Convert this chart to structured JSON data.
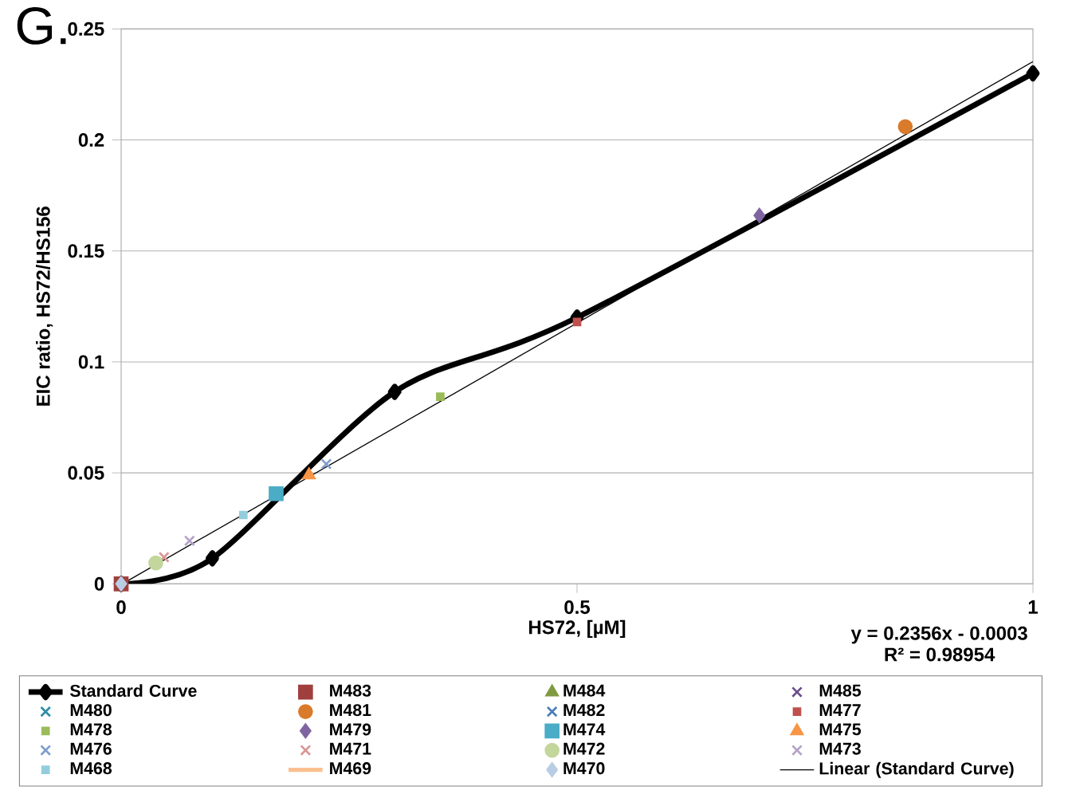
{
  "chart_data": {
    "type": "scatter",
    "title": "G.",
    "xlabel": "HS72, [µM]",
    "ylabel": "EIC ratio, HS72/HS156",
    "xlim": [
      0,
      1
    ],
    "xticks": [
      0,
      0.5,
      1
    ],
    "ylim": [
      0,
      0.25
    ],
    "yticks": [
      0,
      0.05,
      0.1,
      0.15,
      0.2,
      0.25
    ],
    "grid": "y",
    "legend": "bottom",
    "annotations": [
      "y = 0.2356x - 0.0003",
      "R² = 0.98954"
    ],
    "series": [
      {
        "name": "Standard Curve",
        "type": "line",
        "color": "#000000",
        "marker": "diamond",
        "x": [
          0,
          0.1,
          0.3,
          0.5,
          1
        ],
        "values": [
          0,
          0.0115,
          0.0865,
          0.12,
          0.23
        ]
      },
      {
        "name": "M483",
        "color": "#a0403e",
        "marker": "square",
        "x": [
          0
        ],
        "values": [
          0
        ]
      },
      {
        "name": "M484",
        "color": "#7f9a41",
        "marker": "triangle",
        "x": [
          null
        ],
        "values": [
          null
        ]
      },
      {
        "name": "M485",
        "color": "#6b4f8a",
        "marker": "cross",
        "x": [
          null
        ],
        "values": [
          null
        ]
      },
      {
        "name": "M480",
        "color": "#2f8ea5",
        "marker": "cross",
        "x": [
          null
        ],
        "values": [
          null
        ]
      },
      {
        "name": "M481",
        "color": "#d97b2b",
        "marker": "circle",
        "x": [
          0.86
        ],
        "values": [
          0.206
        ]
      },
      {
        "name": "M482",
        "color": "#4a7ebb",
        "marker": "cross",
        "x": [
          null
        ],
        "values": [
          null
        ]
      },
      {
        "name": "M477",
        "color": "#c0504d",
        "marker": "square",
        "x": [
          0.5
        ],
        "values": [
          0.118
        ]
      },
      {
        "name": "M478",
        "color": "#9bbb59",
        "marker": "square",
        "x": [
          0.35
        ],
        "values": [
          0.0843
        ]
      },
      {
        "name": "M479",
        "color": "#8064a2",
        "marker": "diamond",
        "x": [
          0.7
        ],
        "values": [
          0.166
        ]
      },
      {
        "name": "M474",
        "color": "#4bacc6",
        "marker": "square",
        "x": [
          0.17
        ],
        "values": [
          0.0406
        ]
      },
      {
        "name": "M475",
        "color": "#f79646",
        "marker": "triangle",
        "x": [
          0.206
        ],
        "values": [
          0.049
        ]
      },
      {
        "name": "M476",
        "color": "#7f9dcc",
        "marker": "cross",
        "x": [
          0.225
        ],
        "values": [
          0.054
        ]
      },
      {
        "name": "M471",
        "color": "#d99694",
        "marker": "cross",
        "x": [
          0.047
        ],
        "values": [
          0.012
        ]
      },
      {
        "name": "M472",
        "color": "#c3d69b",
        "marker": "circle",
        "x": [
          0.038
        ],
        "values": [
          0.0094
        ]
      },
      {
        "name": "M473",
        "color": "#b3a2c7",
        "marker": "cross",
        "x": [
          0.075
        ],
        "values": [
          0.0194
        ]
      },
      {
        "name": "M468",
        "color": "#93cddd",
        "marker": "square",
        "x": [
          0.134
        ],
        "values": [
          0.031
        ]
      },
      {
        "name": "M469",
        "color": "#fac090",
        "marker": "none",
        "x": [
          null
        ],
        "values": [
          null
        ]
      },
      {
        "name": "M470",
        "color": "#b9cde5",
        "marker": "diamond",
        "x": [
          0
        ],
        "values": [
          0
        ]
      },
      {
        "name": "Linear (Standard Curve)",
        "type": "line",
        "color": "#000000",
        "marker": "none",
        "line_style": "solid",
        "x": [
          0.0013,
          1
        ],
        "values": [
          0,
          0.2353
        ]
      }
    ]
  }
}
